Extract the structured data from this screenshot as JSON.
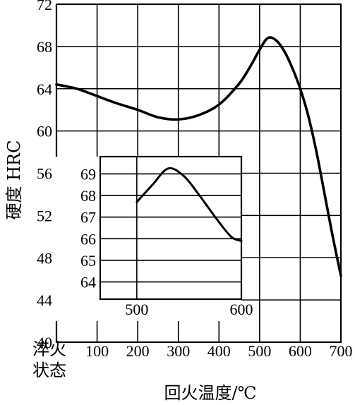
{
  "chart_data": [
    {
      "type": "line",
      "x_label": "回火温度/℃",
      "y_label": "硬度 HRC",
      "x_ticks": [
        {
          "v": 0,
          "t": "淬火\n状态"
        },
        {
          "v": 100,
          "t": "100"
        },
        {
          "v": 200,
          "t": "200"
        },
        {
          "v": 300,
          "t": "300"
        },
        {
          "v": 400,
          "t": "400"
        },
        {
          "v": 500,
          "t": "500"
        },
        {
          "v": 600,
          "t": "600"
        },
        {
          "v": 700,
          "t": "700"
        }
      ],
      "y_ticks": [
        40,
        44,
        48,
        52,
        56,
        60,
        64,
        68,
        72
      ],
      "xlim": [
        0,
        700
      ],
      "ylim": [
        40,
        72
      ],
      "grid": true,
      "series": [
        {
          "x": [
            0,
            50,
            100,
            150,
            200,
            250,
            300,
            350,
            400,
            450,
            480,
            500,
            520,
            540,
            560,
            580,
            600,
            620,
            640,
            660,
            680,
            700
          ],
          "y": [
            64.4,
            64.0,
            63.3,
            62.6,
            62.0,
            61.3,
            61.1,
            61.5,
            62.5,
            64.5,
            66.3,
            67.7,
            68.8,
            68.6,
            67.6,
            66.0,
            64.0,
            61.4,
            58.0,
            54.0,
            50.0,
            46.3
          ]
        }
      ]
    },
    {
      "type": "line",
      "x_ticks": [
        500,
        600
      ],
      "y_ticks": [
        64,
        65,
        66,
        67,
        68,
        69
      ],
      "xlim": [
        465,
        600
      ],
      "ylim": [
        63.2,
        69.8
      ],
      "grid": true,
      "series": [
        {
          "x": [
            500,
            515,
            530,
            545,
            560,
            575,
            590,
            600
          ],
          "y": [
            67.7,
            68.5,
            69.25,
            68.9,
            68.0,
            67.0,
            66.1,
            65.9
          ]
        }
      ]
    }
  ]
}
